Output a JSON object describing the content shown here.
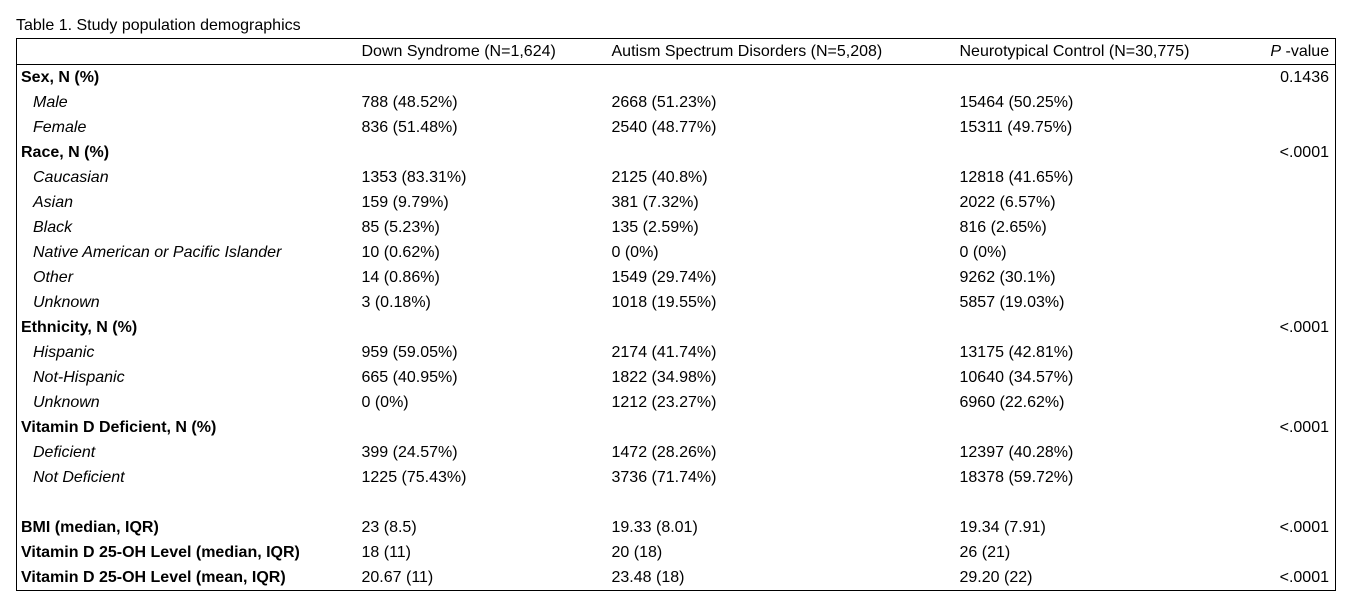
{
  "caption": "Table 1. Study population demographics",
  "columns": [
    "",
    "Down Syndrome (N=1,624)",
    "Autism Spectrum Disorders (N=5,208)",
    "Neurotypical Control (N=30,775)",
    "P",
    " -value"
  ],
  "rows": [
    {
      "label": "Sex, N (%)",
      "kind": "cat",
      "ds": "",
      "asd": "",
      "nt": "",
      "p": "0.1436"
    },
    {
      "label": "Male",
      "kind": "sub",
      "ds": "788 (48.52%)",
      "asd": "2668 (51.23%)",
      "nt": "15464 (50.25%)",
      "p": ""
    },
    {
      "label": "Female",
      "kind": "sub",
      "ds": "836 (51.48%)",
      "asd": "2540 (48.77%)",
      "nt": "15311 (49.75%)",
      "p": ""
    },
    {
      "label": "Race, N (%)",
      "kind": "cat",
      "ds": "",
      "asd": "",
      "nt": "",
      "p": "<.0001"
    },
    {
      "label": "Caucasian",
      "kind": "sub",
      "ds": "1353 (83.31%)",
      "asd": "2125 (40.8%)",
      "nt": "12818 (41.65%)",
      "p": ""
    },
    {
      "label": "Asian",
      "kind": "sub",
      "ds": "159 (9.79%)",
      "asd": "381 (7.32%)",
      "nt": "2022 (6.57%)",
      "p": ""
    },
    {
      "label": "Black",
      "kind": "sub",
      "ds": "85 (5.23%)",
      "asd": "135 (2.59%)",
      "nt": "816 (2.65%)",
      "p": ""
    },
    {
      "label": "Native American or Pacific Islander",
      "kind": "sub",
      "ds": "10 (0.62%)",
      "asd": "0 (0%)",
      "nt": "0 (0%)",
      "p": ""
    },
    {
      "label": "Other",
      "kind": "sub",
      "ds": "14 (0.86%)",
      "asd": "1549 (29.74%)",
      "nt": "9262 (30.1%)",
      "p": ""
    },
    {
      "label": "Unknown",
      "kind": "sub",
      "ds": "3 (0.18%)",
      "asd": "1018 (19.55%)",
      "nt": "5857 (19.03%)",
      "p": ""
    },
    {
      "label": "Ethnicity, N (%)",
      "kind": "cat",
      "ds": "",
      "asd": "",
      "nt": "",
      "p": "<.0001"
    },
    {
      "label": "Hispanic",
      "kind": "sub",
      "ds": "959 (59.05%)",
      "asd": "2174 (41.74%)",
      "nt": "13175 (42.81%)",
      "p": ""
    },
    {
      "label": "Not-Hispanic",
      "kind": "sub",
      "ds": "665 (40.95%)",
      "asd": "1822 (34.98%)",
      "nt": "10640 (34.57%)",
      "p": ""
    },
    {
      "label": "Unknown",
      "kind": "sub",
      "ds": "0 (0%)",
      "asd": "1212 (23.27%)",
      "nt": "6960 (22.62%)",
      "p": ""
    },
    {
      "label": "Vitamin D Deficient, N (%)",
      "kind": "cat",
      "ds": "",
      "asd": "",
      "nt": "",
      "p": "<.0001"
    },
    {
      "label": "Deficient",
      "kind": "sub",
      "ds": "399 (24.57%)",
      "asd": "1472 (28.26%)",
      "nt": "12397 (40.28%)",
      "p": ""
    },
    {
      "label": "Not Deficient",
      "kind": "sub",
      "ds": "1225 (75.43%)",
      "asd": "3736 (71.74%)",
      "nt": "18378 (59.72%)",
      "p": ""
    },
    {
      "label": "",
      "kind": "spacer",
      "ds": "",
      "asd": "",
      "nt": "",
      "p": ""
    },
    {
      "label": "BMI (median, IQR)",
      "kind": "cat",
      "ds": "23 (8.5)",
      "asd": "19.33 (8.01)",
      "nt": "19.34 (7.91)",
      "p": "<.0001"
    },
    {
      "label": "Vitamin D 25-OH Level (median, IQR)",
      "kind": "cat",
      "ds": "18 (11)",
      "asd": "20 (18)",
      "nt": "26 (21)",
      "p": ""
    },
    {
      "label": "Vitamin D 25-OH Level (mean, IQR)",
      "kind": "cat",
      "ds": "20.67 (11)",
      "asd": "23.48 (18)",
      "nt": "29.20 (22)",
      "p": "<.0001"
    }
  ]
}
